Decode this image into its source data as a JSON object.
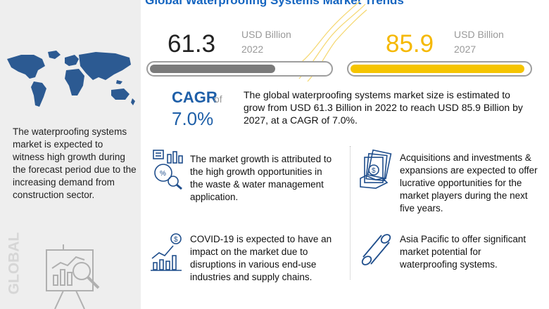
{
  "title": "Global Waterproofing Systems Market Trends",
  "left_panel": {
    "description": "The waterproofing systems market is expected to witness high growth during the forecast period due to the increasing demand from construction sector.",
    "vertical_label": "GLOBAL"
  },
  "colors": {
    "title_blue": "#1565c0",
    "value_2022": "#222222",
    "value_2027": "#f5b800",
    "bar_2022": "#7a7a7a",
    "bar_2027": "#f5c400",
    "cagr_blue": "#1e5fa8",
    "icon_blue": "#1f4e8c"
  },
  "chart_data": {
    "type": "bar",
    "orientation": "horizontal",
    "categories": [
      "2022",
      "2027"
    ],
    "values": [
      61.3,
      85.9
    ],
    "unit": "USD Billion",
    "cagr": "7.0%"
  },
  "market": {
    "value_2022": "61.3",
    "unit_2022": "USD Billion",
    "year_2022": "2022",
    "value_2027": "85.9",
    "unit_2027": "USD Billion",
    "year_2027": "2027",
    "cagr_label": "CAGR",
    "cagr_of": "of",
    "cagr_value": "7.0%",
    "summary": "The global waterproofing systems market size is estimated to grow from USD 61.3 Billion in 2022 to reach USD 85.9 Billion by 2027, at a CAGR of 7.0%."
  },
  "highlights": [
    {
      "icon": "analysis-chart-icon",
      "text": "The market growth is attributed to the high growth opportunities in the waste & water management application."
    },
    {
      "icon": "money-hand-icon",
      "text": "Acquisitions and investments & expansions are expected to offer lucrative opportunities for the market players during the next five years."
    },
    {
      "icon": "growth-bars-dollar-icon",
      "text": "COVID-19 is expected to have an impact on the market due to disruptions in various end-use industries and supply chains."
    },
    {
      "icon": "pipe-icon",
      "text": "Asia Pacific to offer significant market potential for waterproofing systems."
    }
  ]
}
